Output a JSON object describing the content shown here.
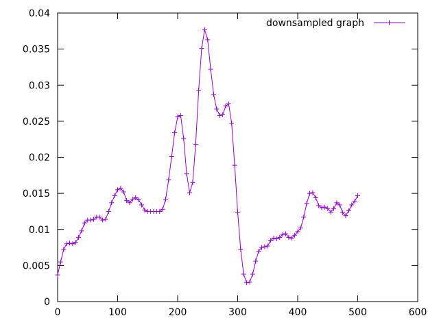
{
  "chart_data": {
    "type": "line",
    "title": "",
    "xlabel": "",
    "ylabel": "",
    "xlim": [
      0,
      600
    ],
    "ylim": [
      0,
      0.04
    ],
    "xticks": [
      0,
      100,
      200,
      300,
      400,
      500,
      600
    ],
    "yticks": [
      0,
      0.005,
      0.01,
      0.015,
      0.02,
      0.025,
      0.03,
      0.035,
      0.04
    ],
    "ytick_labels": [
      "0",
      "0.005",
      "0.01",
      "0.015",
      "0.02",
      "0.025",
      "0.03",
      "0.035",
      "0.04"
    ],
    "grid": false,
    "legend_position": "top-right",
    "series": [
      {
        "name": "downsampled graph",
        "color": "#9400d3",
        "marker": "plus",
        "points": [
          [
            0,
            0.0037
          ],
          [
            5,
            0.0055
          ],
          [
            10,
            0.0072
          ],
          [
            15,
            0.008
          ],
          [
            20,
            0.0081
          ],
          [
            25,
            0.008
          ],
          [
            30,
            0.0082
          ],
          [
            35,
            0.0089
          ],
          [
            40,
            0.0098
          ],
          [
            45,
            0.0109
          ],
          [
            50,
            0.0113
          ],
          [
            55,
            0.0113
          ],
          [
            60,
            0.0114
          ],
          [
            65,
            0.0117
          ],
          [
            70,
            0.0117
          ],
          [
            75,
            0.0113
          ],
          [
            80,
            0.0114
          ],
          [
            85,
            0.0125
          ],
          [
            90,
            0.0137
          ],
          [
            95,
            0.0147
          ],
          [
            100,
            0.0155
          ],
          [
            105,
            0.0157
          ],
          [
            110,
            0.0152
          ],
          [
            115,
            0.014
          ],
          [
            120,
            0.0137
          ],
          [
            125,
            0.0142
          ],
          [
            130,
            0.0144
          ],
          [
            135,
            0.0141
          ],
          [
            140,
            0.0134
          ],
          [
            145,
            0.0127
          ],
          [
            150,
            0.0125
          ],
          [
            155,
            0.0125
          ],
          [
            160,
            0.0125
          ],
          [
            165,
            0.0125
          ],
          [
            170,
            0.0125
          ],
          [
            175,
            0.0128
          ],
          [
            180,
            0.0142
          ],
          [
            185,
            0.0169
          ],
          [
            190,
            0.0201
          ],
          [
            195,
            0.0234
          ],
          [
            200,
            0.0256
          ],
          [
            205,
            0.0258
          ],
          [
            210,
            0.0226
          ],
          [
            215,
            0.0177
          ],
          [
            220,
            0.0151
          ],
          [
            225,
            0.0165
          ],
          [
            230,
            0.0218
          ],
          [
            235,
            0.0293
          ],
          [
            240,
            0.0351
          ],
          [
            245,
            0.0377
          ],
          [
            250,
            0.0363
          ],
          [
            255,
            0.0322
          ],
          [
            260,
            0.0287
          ],
          [
            265,
            0.0267
          ],
          [
            270,
            0.0258
          ],
          [
            275,
            0.0259
          ],
          [
            280,
            0.0271
          ],
          [
            285,
            0.0274
          ],
          [
            290,
            0.0247
          ],
          [
            295,
            0.0189
          ],
          [
            300,
            0.0124
          ],
          [
            305,
            0.0072
          ],
          [
            310,
            0.0038
          ],
          [
            315,
            0.0026
          ],
          [
            320,
            0.0027
          ],
          [
            325,
            0.0038
          ],
          [
            330,
            0.0056
          ],
          [
            335,
            0.007
          ],
          [
            340,
            0.0075
          ],
          [
            345,
            0.0076
          ],
          [
            350,
            0.0077
          ],
          [
            355,
            0.0085
          ],
          [
            360,
            0.0088
          ],
          [
            365,
            0.0087
          ],
          [
            370,
            0.0089
          ],
          [
            375,
            0.0093
          ],
          [
            380,
            0.0094
          ],
          [
            385,
            0.0089
          ],
          [
            390,
            0.0088
          ],
          [
            395,
            0.0092
          ],
          [
            400,
            0.0097
          ],
          [
            405,
            0.0102
          ],
          [
            410,
            0.0117
          ],
          [
            415,
            0.0136
          ],
          [
            420,
            0.015
          ],
          [
            425,
            0.0151
          ],
          [
            430,
            0.0144
          ],
          [
            435,
            0.0133
          ],
          [
            440,
            0.013
          ],
          [
            445,
            0.0131
          ],
          [
            450,
            0.0129
          ],
          [
            455,
            0.0124
          ],
          [
            460,
            0.0129
          ],
          [
            465,
            0.0137
          ],
          [
            470,
            0.0134
          ],
          [
            475,
            0.0123
          ],
          [
            480,
            0.0119
          ],
          [
            485,
            0.0126
          ],
          [
            490,
            0.0134
          ],
          [
            495,
            0.0139
          ],
          [
            500,
            0.0147
          ]
        ]
      }
    ]
  }
}
